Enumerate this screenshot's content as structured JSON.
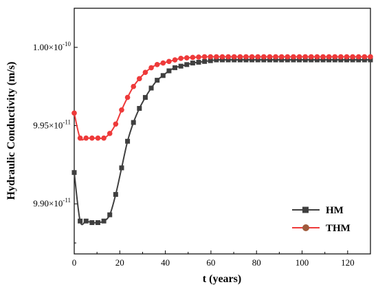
{
  "chart_data": {
    "type": "line",
    "title": "",
    "xlabel": "t (years)",
    "ylabel": "Hydraulic Conductivity (m/s)",
    "xlim": [
      0,
      130
    ],
    "ylim": [
      9.868e-11,
      1.0025e-10
    ],
    "x_ticks": [
      0,
      20,
      40,
      60,
      80,
      100,
      120
    ],
    "x_tick_labels": [
      "0",
      "20",
      "40",
      "60",
      "80",
      "100",
      "120"
    ],
    "y_ticks": [
      9.9e-11,
      9.95e-11,
      1e-10
    ],
    "y_tick_labels": [
      {
        "mantissa": "9.90×10",
        "exp": "-11"
      },
      {
        "mantissa": "9.95×10",
        "exp": "-11"
      },
      {
        "mantissa": "1.00×10",
        "exp": "-10"
      }
    ],
    "grid": false,
    "legend_position": "bottom-right",
    "series": [
      {
        "name": "HM",
        "color": "#3f3f3f",
        "marker": "square",
        "x": [
          0,
          2.6,
          5.2,
          7.8,
          10.4,
          13,
          15.6,
          18.2,
          20.8,
          23.4,
          26,
          28.6,
          31.2,
          33.8,
          36.4,
          39,
          41.6,
          44.2,
          46.8,
          49.4,
          52,
          54.6,
          57.2,
          59.8,
          62.4,
          65,
          67.6,
          70.2,
          72.8,
          75.4,
          78,
          80.6,
          83.2,
          85.8,
          88.4,
          91,
          93.6,
          96.2,
          98.8,
          101.4,
          104,
          106.6,
          109.2,
          111.8,
          114.4,
          117,
          119.6,
          122.2,
          124.8,
          127.4,
          130
        ],
        "y": [
          9.92e-11,
          9.889e-11,
          9.889e-11,
          9.888e-11,
          9.888e-11,
          9.889e-11,
          9.893e-11,
          9.906e-11,
          9.923e-11,
          9.94e-11,
          9.952e-11,
          9.961e-11,
          9.968e-11,
          9.974e-11,
          9.979e-11,
          9.982e-11,
          9.985e-11,
          9.987e-11,
          9.988e-11,
          9.989e-11,
          9.99e-11,
          9.9905e-11,
          9.991e-11,
          9.9915e-11,
          9.992e-11,
          9.992e-11,
          9.992e-11,
          9.992e-11,
          9.992e-11,
          9.992e-11,
          9.992e-11,
          9.992e-11,
          9.992e-11,
          9.992e-11,
          9.992e-11,
          9.992e-11,
          9.992e-11,
          9.992e-11,
          9.992e-11,
          9.992e-11,
          9.992e-11,
          9.992e-11,
          9.992e-11,
          9.992e-11,
          9.992e-11,
          9.992e-11,
          9.992e-11,
          9.992e-11,
          9.992e-11,
          9.992e-11,
          9.992e-11
        ]
      },
      {
        "name": "THM",
        "color": "#ee3a3a",
        "marker": "circle",
        "x": [
          0,
          2.6,
          5.2,
          7.8,
          10.4,
          13,
          15.6,
          18.2,
          20.8,
          23.4,
          26,
          28.6,
          31.2,
          33.8,
          36.4,
          39,
          41.6,
          44.2,
          46.8,
          49.4,
          52,
          54.6,
          57.2,
          59.8,
          62.4,
          65,
          67.6,
          70.2,
          72.8,
          75.4,
          78,
          80.6,
          83.2,
          85.8,
          88.4,
          91,
          93.6,
          96.2,
          98.8,
          101.4,
          104,
          106.6,
          109.2,
          111.8,
          114.4,
          117,
          119.6,
          122.2,
          124.8,
          127.4,
          130
        ],
        "y": [
          9.958e-11,
          9.942e-11,
          9.942e-11,
          9.942e-11,
          9.942e-11,
          9.942e-11,
          9.945e-11,
          9.951e-11,
          9.96e-11,
          9.968e-11,
          9.975e-11,
          9.98e-11,
          9.984e-11,
          9.987e-11,
          9.989e-11,
          9.99e-11,
          9.991e-11,
          9.992e-11,
          9.993e-11,
          9.9933e-11,
          9.9936e-11,
          9.9938e-11,
          9.994e-11,
          9.994e-11,
          9.994e-11,
          9.994e-11,
          9.994e-11,
          9.994e-11,
          9.994e-11,
          9.994e-11,
          9.994e-11,
          9.994e-11,
          9.994e-11,
          9.994e-11,
          9.994e-11,
          9.994e-11,
          9.994e-11,
          9.994e-11,
          9.994e-11,
          9.994e-11,
          9.994e-11,
          9.994e-11,
          9.994e-11,
          9.994e-11,
          9.994e-11,
          9.994e-11,
          9.994e-11,
          9.994e-11,
          9.994e-11,
          9.994e-11,
          9.994e-11
        ]
      }
    ]
  }
}
